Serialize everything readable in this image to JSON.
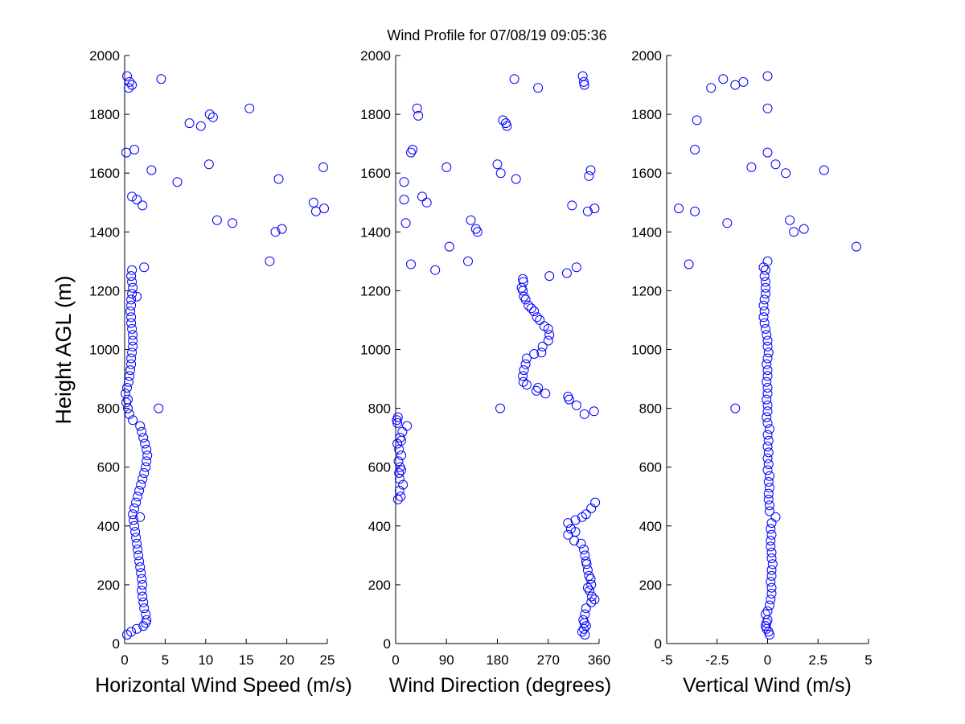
{
  "title": "Wind Profile for  07/08/19 09:05:36",
  "ylabel": "Height AGL (m)",
  "marker_color": "#0000ff",
  "chart_data": [
    {
      "type": "scatter",
      "name": "horizontal",
      "xlabel": "Horizontal Wind Speed (m/s)",
      "xlim": [
        0,
        25
      ],
      "xticks": [
        "0",
        "5",
        "10",
        "15",
        "20",
        "25"
      ],
      "ylim": [
        0,
        2000
      ],
      "yticks": [
        "0",
        "200",
        "400",
        "600",
        "800",
        "1000",
        "1200",
        "1400",
        "1600",
        "1800",
        "2000"
      ],
      "points": [
        [
          0.3,
          1930
        ],
        [
          0.5,
          1890
        ],
        [
          0.6,
          1910
        ],
        [
          0.9,
          1900
        ],
        [
          4.5,
          1920
        ],
        [
          15.4,
          1820
        ],
        [
          10.5,
          1800
        ],
        [
          10.9,
          1790
        ],
        [
          8.0,
          1770
        ],
        [
          9.4,
          1760
        ],
        [
          0.2,
          1670
        ],
        [
          1.2,
          1680
        ],
        [
          3.3,
          1610
        ],
        [
          6.5,
          1570
        ],
        [
          10.4,
          1630
        ],
        [
          19.0,
          1580
        ],
        [
          24.5,
          1620
        ],
        [
          23.3,
          1500
        ],
        [
          23.6,
          1470
        ],
        [
          24.6,
          1480
        ],
        [
          0.9,
          1520
        ],
        [
          1.5,
          1510
        ],
        [
          2.2,
          1490
        ],
        [
          11.4,
          1440
        ],
        [
          13.3,
          1430
        ],
        [
          18.6,
          1400
        ],
        [
          19.4,
          1410
        ],
        [
          17.9,
          1300
        ],
        [
          2.4,
          1280
        ],
        [
          4.2,
          800
        ],
        [
          0.3,
          30
        ],
        [
          0.8,
          40
        ],
        [
          1.5,
          50
        ],
        [
          2.3,
          60
        ],
        [
          2.6,
          70
        ],
        [
          2.7,
          80
        ],
        [
          2.6,
          100
        ],
        [
          2.4,
          120
        ],
        [
          2.3,
          140
        ],
        [
          2.2,
          160
        ],
        [
          2.1,
          180
        ],
        [
          2.2,
          200
        ],
        [
          2.1,
          220
        ],
        [
          2.0,
          240
        ],
        [
          1.9,
          260
        ],
        [
          1.8,
          280
        ],
        [
          1.7,
          300
        ],
        [
          1.6,
          320
        ],
        [
          1.5,
          340
        ],
        [
          1.4,
          360
        ],
        [
          1.3,
          380
        ],
        [
          1.2,
          400
        ],
        [
          1.1,
          420
        ],
        [
          1.9,
          430
        ],
        [
          1.0,
          440
        ],
        [
          1.2,
          460
        ],
        [
          1.4,
          480
        ],
        [
          1.6,
          500
        ],
        [
          1.8,
          520
        ],
        [
          2.0,
          540
        ],
        [
          2.2,
          560
        ],
        [
          2.4,
          580
        ],
        [
          2.6,
          600
        ],
        [
          2.7,
          620
        ],
        [
          2.8,
          640
        ],
        [
          2.7,
          660
        ],
        [
          2.5,
          680
        ],
        [
          2.3,
          700
        ],
        [
          2.1,
          720
        ],
        [
          1.9,
          740
        ],
        [
          1.0,
          760
        ],
        [
          0.6,
          780
        ],
        [
          0.4,
          800
        ],
        [
          0.2,
          820
        ],
        [
          0.4,
          830
        ],
        [
          0.1,
          850
        ],
        [
          0.3,
          870
        ],
        [
          0.5,
          890
        ],
        [
          0.6,
          910
        ],
        [
          0.7,
          930
        ],
        [
          0.8,
          950
        ],
        [
          0.8,
          970
        ],
        [
          0.9,
          990
        ],
        [
          1.0,
          1010
        ],
        [
          1.0,
          1030
        ],
        [
          1.0,
          1050
        ],
        [
          0.9,
          1070
        ],
        [
          0.8,
          1090
        ],
        [
          0.8,
          1110
        ],
        [
          0.7,
          1130
        ],
        [
          0.8,
          1150
        ],
        [
          0.8,
          1170
        ],
        [
          1.5,
          1180
        ],
        [
          0.9,
          1190
        ],
        [
          1.0,
          1210
        ],
        [
          0.9,
          1230
        ],
        [
          0.8,
          1250
        ],
        [
          0.9,
          1270
        ]
      ]
    },
    {
      "type": "scatter",
      "name": "direction",
      "xlabel": "Wind Direction (degrees)",
      "xlim": [
        0,
        360
      ],
      "xticks": [
        "0",
        "90",
        "180",
        "270",
        "360"
      ],
      "ylim": [
        0,
        2000
      ],
      "yticks": [
        "0",
        "200",
        "400",
        "600",
        "800",
        "1000",
        "1200",
        "1400",
        "1600",
        "1800",
        "2000"
      ],
      "points": [
        [
          331,
          1930
        ],
        [
          333,
          1910
        ],
        [
          334,
          1900
        ],
        [
          210,
          1920
        ],
        [
          252,
          1890
        ],
        [
          38,
          1820
        ],
        [
          40,
          1795
        ],
        [
          190,
          1780
        ],
        [
          195,
          1770
        ],
        [
          197,
          1760
        ],
        [
          30,
          1680
        ],
        [
          27,
          1670
        ],
        [
          180,
          1630
        ],
        [
          90,
          1620
        ],
        [
          186,
          1600
        ],
        [
          213,
          1580
        ],
        [
          345,
          1610
        ],
        [
          342,
          1590
        ],
        [
          15,
          1570
        ],
        [
          15,
          1510
        ],
        [
          47,
          1520
        ],
        [
          55,
          1500
        ],
        [
          312,
          1490
        ],
        [
          352,
          1480
        ],
        [
          340,
          1470
        ],
        [
          133,
          1440
        ],
        [
          18,
          1430
        ],
        [
          142,
          1410
        ],
        [
          145,
          1400
        ],
        [
          95,
          1350
        ],
        [
          128,
          1300
        ],
        [
          27,
          1290
        ],
        [
          70,
          1270
        ],
        [
          320,
          1280
        ],
        [
          303,
          1260
        ],
        [
          272,
          1250
        ],
        [
          225,
          1240
        ],
        [
          185,
          800
        ],
        [
          334,
          780
        ],
        [
          351,
          790
        ],
        [
          335,
          30
        ],
        [
          330,
          40
        ],
        [
          333,
          50
        ],
        [
          337,
          60
        ],
        [
          334,
          70
        ],
        [
          332,
          80
        ],
        [
          335,
          100
        ],
        [
          337,
          120
        ],
        [
          346,
          140
        ],
        [
          352,
          150
        ],
        [
          347,
          160
        ],
        [
          343,
          180
        ],
        [
          340,
          190
        ],
        [
          346,
          200
        ],
        [
          345,
          220
        ],
        [
          342,
          230
        ],
        [
          340,
          250
        ],
        [
          338,
          270
        ],
        [
          337,
          280
        ],
        [
          335,
          300
        ],
        [
          333,
          320
        ],
        [
          328,
          340
        ],
        [
          316,
          350
        ],
        [
          305,
          370
        ],
        [
          318,
          380
        ],
        [
          310,
          390
        ],
        [
          305,
          410
        ],
        [
          318,
          420
        ],
        [
          330,
          430
        ],
        [
          337,
          440
        ],
        [
          346,
          460
        ],
        [
          353,
          480
        ],
        [
          4,
          490
        ],
        [
          9,
          500
        ],
        [
          7,
          520
        ],
        [
          13,
          540
        ],
        [
          7,
          560
        ],
        [
          6,
          580
        ],
        [
          10,
          590
        ],
        [
          8,
          600
        ],
        [
          5,
          620
        ],
        [
          10,
          640
        ],
        [
          6,
          660
        ],
        [
          3,
          680
        ],
        [
          10,
          690
        ],
        [
          8,
          700
        ],
        [
          12,
          720
        ],
        [
          20,
          740
        ],
        [
          3,
          750
        ],
        [
          2,
          760
        ],
        [
          4,
          770
        ],
        [
          320,
          810
        ],
        [
          307,
          830
        ],
        [
          305,
          840
        ],
        [
          265,
          850
        ],
        [
          249,
          860
        ],
        [
          252,
          870
        ],
        [
          232,
          880
        ],
        [
          226,
          890
        ],
        [
          225,
          910
        ],
        [
          227,
          930
        ],
        [
          230,
          950
        ],
        [
          232,
          970
        ],
        [
          245,
          985
        ],
        [
          258,
          990
        ],
        [
          260,
          1010
        ],
        [
          270,
          1030
        ],
        [
          272,
          1050
        ],
        [
          270,
          1070
        ],
        [
          263,
          1080
        ],
        [
          255,
          1100
        ],
        [
          250,
          1110
        ],
        [
          245,
          1130
        ],
        [
          240,
          1140
        ],
        [
          235,
          1150
        ],
        [
          230,
          1170
        ],
        [
          227,
          1180
        ],
        [
          225,
          1200
        ],
        [
          223,
          1210
        ],
        [
          226,
          1230
        ]
      ]
    },
    {
      "type": "scatter",
      "name": "vertical",
      "xlabel": "Vertical Wind (m/s)",
      "xlim": [
        -5,
        5
      ],
      "xticks": [
        "-5",
        "-2.5",
        "0",
        "2.5",
        "5"
      ],
      "ylim": [
        0,
        2000
      ],
      "yticks": [
        "0",
        "200",
        "400",
        "600",
        "800",
        "1000",
        "1200",
        "1400",
        "1600",
        "1800",
        "2000"
      ],
      "points": [
        [
          0.0,
          1930
        ],
        [
          -2.2,
          1920
        ],
        [
          -1.2,
          1910
        ],
        [
          -1.6,
          1900
        ],
        [
          -2.8,
          1890
        ],
        [
          0.0,
          1820
        ],
        [
          -3.5,
          1780
        ],
        [
          -3.6,
          1680
        ],
        [
          0.0,
          1670
        ],
        [
          0.4,
          1630
        ],
        [
          -0.8,
          1620
        ],
        [
          0.9,
          1600
        ],
        [
          2.8,
          1610
        ],
        [
          -4.4,
          1480
        ],
        [
          -3.6,
          1470
        ],
        [
          1.1,
          1440
        ],
        [
          -2.0,
          1430
        ],
        [
          1.8,
          1410
        ],
        [
          1.3,
          1400
        ],
        [
          4.4,
          1350
        ],
        [
          -3.9,
          1290
        ],
        [
          0.0,
          1300
        ],
        [
          -0.2,
          1280
        ],
        [
          -1.6,
          800
        ],
        [
          0.4,
          430
        ],
        [
          0.1,
          30
        ],
        [
          0.05,
          40
        ],
        [
          -0.05,
          50
        ],
        [
          -0.1,
          60
        ],
        [
          -0.05,
          70
        ],
        [
          0.0,
          80
        ],
        [
          -0.1,
          100
        ],
        [
          0.0,
          110
        ],
        [
          0.1,
          130
        ],
        [
          0.15,
          150
        ],
        [
          0.2,
          170
        ],
        [
          0.2,
          190
        ],
        [
          0.15,
          210
        ],
        [
          0.2,
          230
        ],
        [
          0.2,
          250
        ],
        [
          0.25,
          270
        ],
        [
          0.2,
          290
        ],
        [
          0.2,
          310
        ],
        [
          0.15,
          330
        ],
        [
          0.15,
          350
        ],
        [
          0.2,
          370
        ],
        [
          0.15,
          390
        ],
        [
          0.2,
          410
        ],
        [
          0.1,
          450
        ],
        [
          0.1,
          470
        ],
        [
          0.05,
          490
        ],
        [
          0.05,
          510
        ],
        [
          0.1,
          530
        ],
        [
          0.05,
          550
        ],
        [
          0.1,
          570
        ],
        [
          0.0,
          590
        ],
        [
          0.05,
          610
        ],
        [
          0.0,
          630
        ],
        [
          0.05,
          650
        ],
        [
          0.0,
          670
        ],
        [
          0.05,
          690
        ],
        [
          0.0,
          710
        ],
        [
          0.1,
          730
        ],
        [
          0.0,
          750
        ],
        [
          -0.05,
          770
        ],
        [
          0.0,
          790
        ],
        [
          0.0,
          810
        ],
        [
          -0.05,
          830
        ],
        [
          0.0,
          850
        ],
        [
          0.0,
          870
        ],
        [
          -0.05,
          890
        ],
        [
          0.0,
          910
        ],
        [
          0.0,
          930
        ],
        [
          -0.05,
          950
        ],
        [
          0.0,
          970
        ],
        [
          0.05,
          990
        ],
        [
          0.0,
          1010
        ],
        [
          0.0,
          1030
        ],
        [
          -0.05,
          1050
        ],
        [
          -0.1,
          1070
        ],
        [
          -0.15,
          1090
        ],
        [
          -0.2,
          1110
        ],
        [
          -0.15,
          1130
        ],
        [
          -0.2,
          1150
        ],
        [
          -0.15,
          1170
        ],
        [
          -0.1,
          1190
        ],
        [
          -0.1,
          1210
        ],
        [
          -0.1,
          1230
        ],
        [
          -0.15,
          1250
        ],
        [
          -0.1,
          1270
        ]
      ]
    }
  ]
}
